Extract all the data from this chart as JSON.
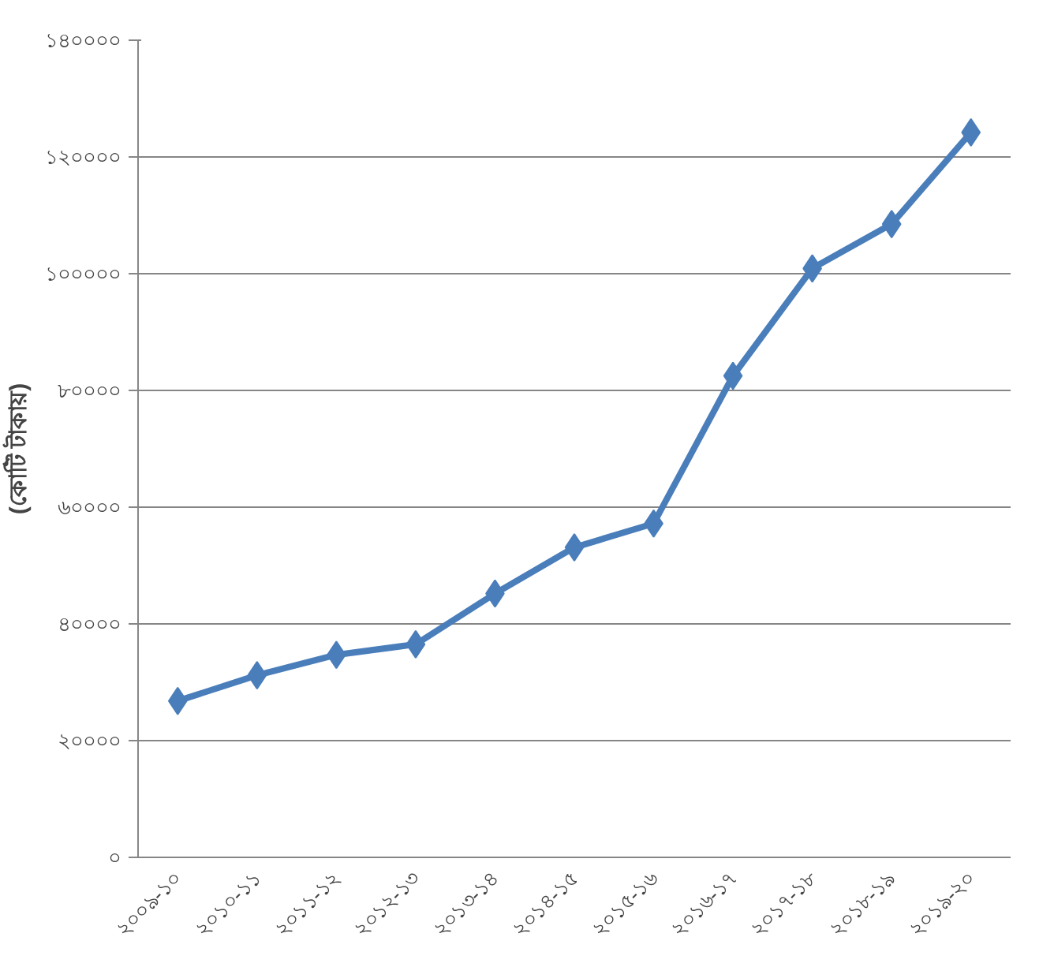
{
  "chart_data": {
    "type": "line",
    "ylabel": "(কোটি টাকায়)",
    "categories": [
      "২০০৯-১০",
      "২০১০-১১",
      "২০১১-১২",
      "২০১২-১৩",
      "২০১৩-১৪",
      "২০১৪-১৫",
      "২০১৫-১৬",
      "২০১৬-১৭",
      "২০১৭-১৮",
      "২০১৮-১৯",
      "২০১৯-২০"
    ],
    "series": [
      {
        "color": "#4a7ebb",
        "values": [
          26800,
          31200,
          34700,
          36500,
          45200,
          53100,
          57200,
          82500,
          100900,
          108500,
          124200
        ]
      }
    ],
    "ylim": [
      0,
      140000
    ],
    "yticks": [
      {
        "value": 0,
        "label": "০"
      },
      {
        "value": 20000,
        "label": "২০০০০"
      },
      {
        "value": 40000,
        "label": "৪০০০০"
      },
      {
        "value": 60000,
        "label": "৬০০০০"
      },
      {
        "value": 80000,
        "label": "৮০০০০"
      },
      {
        "value": 100000,
        "label": "১০০০০০"
      },
      {
        "value": 120000,
        "label": "১২০০০০"
      },
      {
        "value": 140000,
        "label": "১৪০০০০"
      }
    ],
    "grid": "y",
    "marker": "diamond",
    "line_style": "solid"
  }
}
